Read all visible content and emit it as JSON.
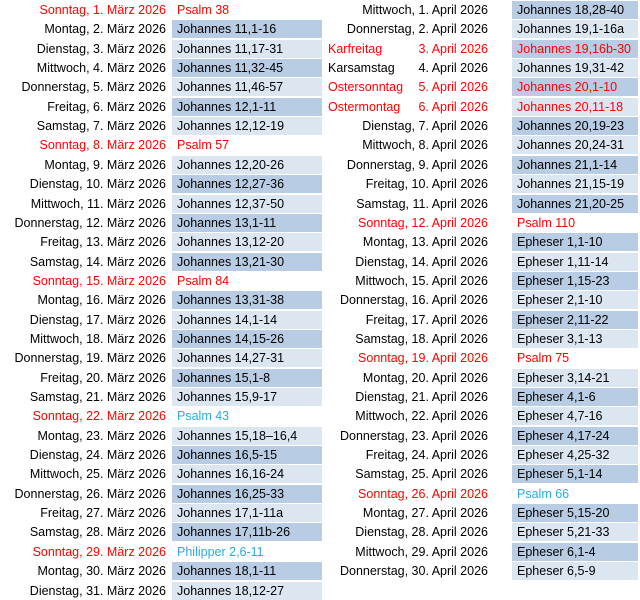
{
  "columns": [
    {
      "rows": [
        {
          "date": "Sonntag, 1. März 2026",
          "reading": "Psalm 38"
        },
        {
          "date": "Montag, 2. März 2026",
          "reading": "Johannes 11,1-16"
        },
        {
          "date": "Dienstag, 3. März 2026",
          "reading": "Johannes 11,17-31"
        },
        {
          "date": "Mittwoch, 4. März 2026",
          "reading": "Johannes 11,32-45"
        },
        {
          "date": "Donnerstag, 5. März 2026",
          "reading": "Johannes 11,46-57"
        },
        {
          "date": "Freitag, 6. März 2026",
          "reading": "Johannes 12,1-11"
        },
        {
          "date": "Samstag, 7. März 2026",
          "reading": "Johannes 12,12-19"
        },
        {
          "date": "Sonntag, 8. März 2026",
          "reading": "Psalm 57"
        },
        {
          "date": "Montag, 9. März 2026",
          "reading": "Johannes 12,20-26"
        },
        {
          "date": "Dienstag, 10. März 2026",
          "reading": "Johannes 12,27-36"
        },
        {
          "date": "Mittwoch, 11. März 2026",
          "reading": "Johannes 12,37-50"
        },
        {
          "date": "Donnerstag, 12. März 2026",
          "reading": "Johannes 13,1-11"
        },
        {
          "date": "Freitag, 13. März 2026",
          "reading": "Johannes 13,12-20"
        },
        {
          "date": "Samstag, 14. März 2026",
          "reading": "Johannes 13,21-30"
        },
        {
          "date": "Sonntag, 15. März 2026",
          "reading": "Psalm 84"
        },
        {
          "date": "Montag, 16. März 2026",
          "reading": "Johannes 13,31-38"
        },
        {
          "date": "Dienstag, 17. März 2026",
          "reading": "Johannes 14,1-14"
        },
        {
          "date": "Mittwoch, 18. März 2026",
          "reading": "Johannes 14,15-26"
        },
        {
          "date": "Donnerstag, 19. März 2026",
          "reading": "Johannes 14,27-31"
        },
        {
          "date": "Freitag, 20. März 2026",
          "reading": "Johannes 15,1-8"
        },
        {
          "date": "Samstag, 21. März 2026",
          "reading": "Johannes 15,9-17"
        },
        {
          "date": "Sonntag, 22. März 2026",
          "reading": "Psalm 43"
        },
        {
          "date": "Montag, 23. März 2026",
          "reading": "Johannes 15,18–16,4"
        },
        {
          "date": "Dienstag, 24. März 2026",
          "reading": "Johannes 16,5-15"
        },
        {
          "date": "Mittwoch, 25. März 2026",
          "reading": "Johannes 16,16-24"
        },
        {
          "date": "Donnerstag, 26. März 2026",
          "reading": "Johannes 16,25-33"
        },
        {
          "date": "Freitag, 27. März 2026",
          "reading": "Johannes 17,1-11a"
        },
        {
          "date": "Samstag, 28. März 2026",
          "reading": "Johannes 17,11b-26"
        },
        {
          "date": "Sonntag, 29. März 2026",
          "reading": "Philipper 2,6-11"
        },
        {
          "date": "Montag, 30. März 2026",
          "reading": "Johannes 18,1-11"
        },
        {
          "date": "Dienstag, 31. März 2026",
          "reading": "Johannes 18,12-27"
        }
      ]
    },
    {
      "rows": [
        {
          "date": "Mittwoch, 1. April 2026",
          "reading": "Johannes 18,28-40"
        },
        {
          "date": "Donnerstag, 2. April 2026",
          "reading": "Johannes 19,1-16a"
        },
        {
          "label": "Karfreitag",
          "date": "3. April 2026",
          "reading": "Johannes 19,16b-30"
        },
        {
          "label": "Karsamstag",
          "date": "4. April 2026",
          "reading": "Johannes 19,31-42"
        },
        {
          "label": "Ostersonntag",
          "date": "5. April 2026",
          "reading": "Johannes 20,1-10"
        },
        {
          "label": "Ostermontag",
          "date": "6. April 2026",
          "reading": "Johannes 20,11-18"
        },
        {
          "date": "Dienstag, 7. April 2026",
          "reading": "Johannes 20,19-23"
        },
        {
          "date": "Mittwoch, 8. April 2026",
          "reading": "Johannes 20,24-31"
        },
        {
          "date": "Donnerstag, 9. April 2026",
          "reading": "Johannes 21,1-14"
        },
        {
          "date": "Freitag, 10. April 2026",
          "reading": "Johannes 21,15-19"
        },
        {
          "date": "Samstag, 11. April 2026",
          "reading": "Johannes 21,20-25"
        },
        {
          "date": "Sonntag, 12. April 2026",
          "reading": "Psalm 110"
        },
        {
          "date": "Montag, 13. April 2026",
          "reading": "Epheser 1,1-10"
        },
        {
          "date": "Dienstag, 14. April 2026",
          "reading": "Epheser 1,11-14"
        },
        {
          "date": "Mittwoch, 15. April 2026",
          "reading": "Epheser 1,15-23"
        },
        {
          "date": "Donnerstag, 16. April 2026",
          "reading": "Epheser 2,1-10"
        },
        {
          "date": "Freitag, 17. April 2026",
          "reading": "Epheser 2,11-22"
        },
        {
          "date": "Samstag, 18. April 2026",
          "reading": "Epheser 3,1-13"
        },
        {
          "date": "Sonntag, 19. April 2026",
          "reading": "Psalm 75"
        },
        {
          "date": "Montag, 20. April 2026",
          "reading": "Epheser 3,14-21"
        },
        {
          "date": "Dienstag, 21. April 2026",
          "reading": "Epheser 4,1-6"
        },
        {
          "date": "Mittwoch, 22. April 2026",
          "reading": "Epheser 4,7-16"
        },
        {
          "date": "Donnerstag, 23. April 2026",
          "reading": "Epheser 4,17-24"
        },
        {
          "date": "Freitag, 24. April 2026",
          "reading": "Epheser 4,25-32"
        },
        {
          "date": "Samstag, 25. April 2026",
          "reading": "Epheser 5,1-14"
        },
        {
          "date": "Sonntag, 26. April 2026",
          "reading": "Psalm 66"
        },
        {
          "date": "Montag, 27. April 2026",
          "reading": "Epheser 5,15-20"
        },
        {
          "date": "Dienstag, 28. April 2026",
          "reading": "Epheser 5,21-33"
        },
        {
          "date": "Mittwoch, 29. April 2026",
          "reading": "Epheser 6,1-4"
        },
        {
          "date": "Donnerstag, 30. April 2026",
          "reading": "Epheser 6,5-9"
        }
      ]
    }
  ]
}
